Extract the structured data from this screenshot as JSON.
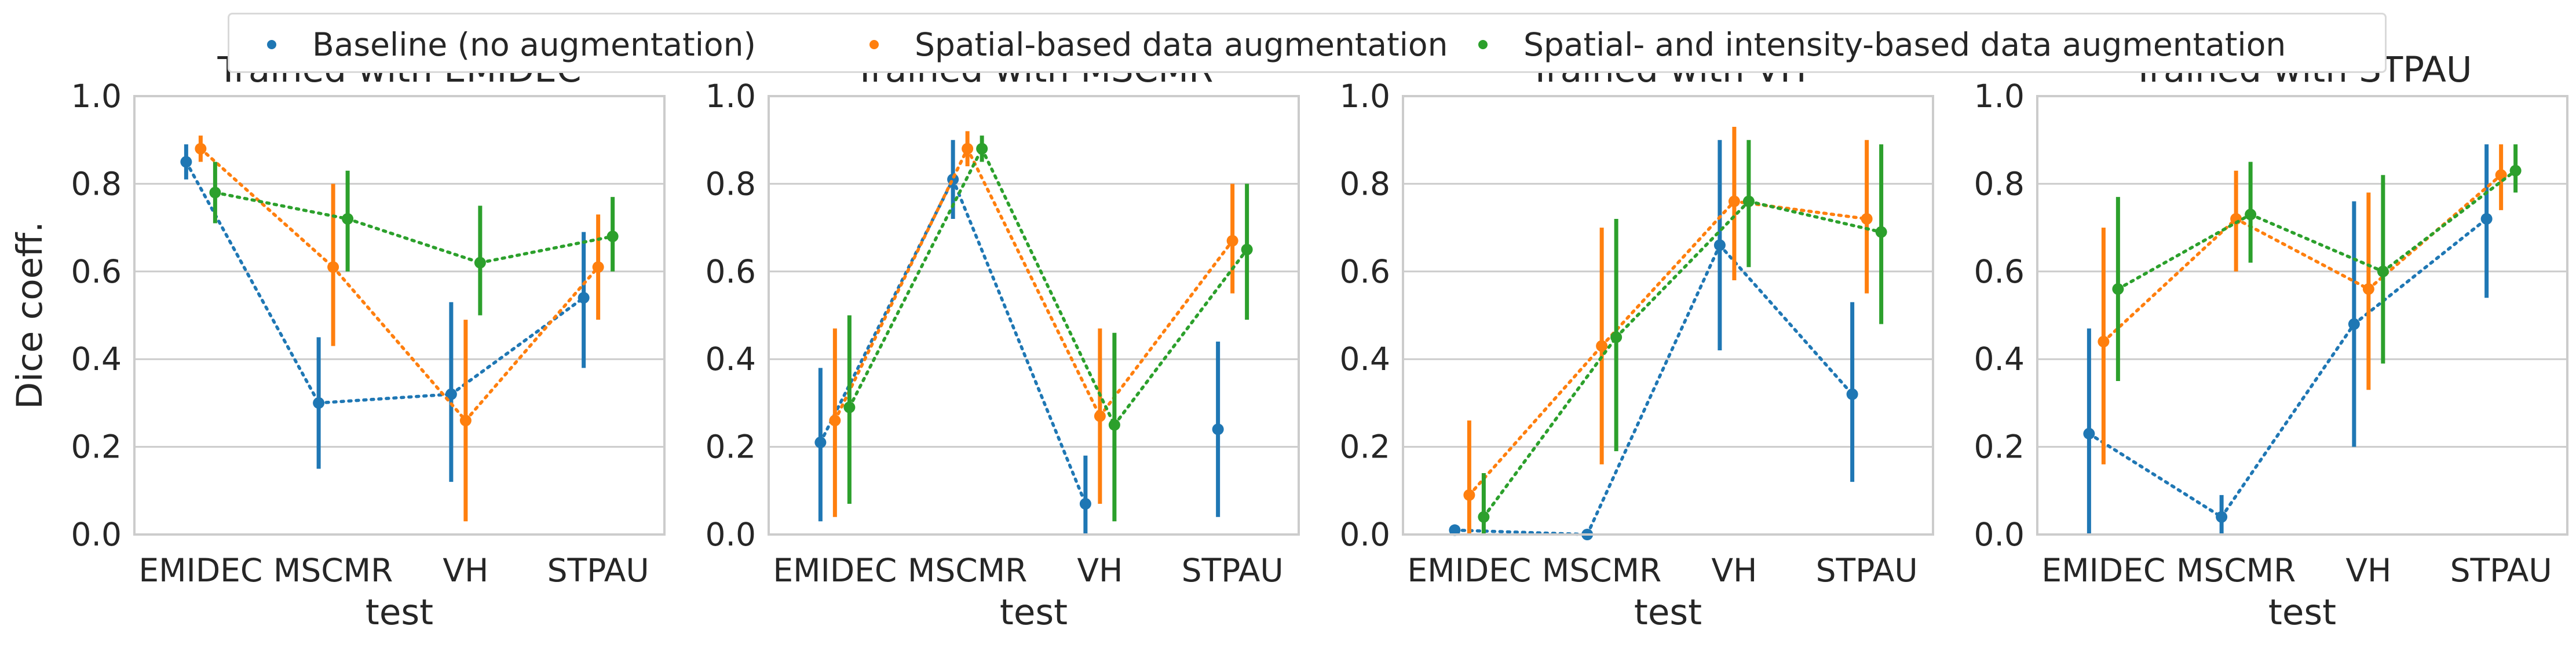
{
  "legend": [
    {
      "label": "Baseline (no augmentation)",
      "color": "#1f77b4"
    },
    {
      "label": "Spatial-based data augmentation",
      "color": "#ff7f0e"
    },
    {
      "label": "Spatial- and intensity-based data augmentation",
      "color": "#2ca02c"
    }
  ],
  "chart_data": [
    {
      "type": "scatter",
      "title": "Trained with EMIDEC",
      "xlabel": "test",
      "ylabel": "Dice coeff.",
      "ylim": [
        0,
        1
      ],
      "yticks": [
        "0.0",
        "0.2",
        "0.4",
        "0.6",
        "0.8",
        "1.0"
      ],
      "categories": [
        "EMIDEC",
        "MSCMR",
        "VH",
        "STPAU"
      ],
      "series": [
        {
          "name": "Baseline (no augmentation)",
          "values": [
            0.85,
            0.3,
            0.32,
            0.54
          ],
          "lower": [
            0.81,
            0.15,
            0.12,
            0.38
          ],
          "upper": [
            0.89,
            0.45,
            0.53,
            0.69
          ]
        },
        {
          "name": "Spatial-based data augmentation",
          "values": [
            0.88,
            0.61,
            0.26,
            0.61
          ],
          "lower": [
            0.85,
            0.43,
            0.03,
            0.49
          ],
          "upper": [
            0.91,
            0.8,
            0.49,
            0.73
          ]
        },
        {
          "name": "Spatial- and intensity-based data augmentation",
          "values": [
            0.78,
            0.72,
            0.62,
            0.68
          ],
          "lower": [
            0.71,
            0.6,
            0.5,
            0.6
          ],
          "upper": [
            0.85,
            0.83,
            0.75,
            0.77
          ]
        }
      ]
    },
    {
      "type": "scatter",
      "title": "Trained with MSCMR",
      "xlabel": "test",
      "ylabel": "",
      "ylim": [
        0,
        1
      ],
      "yticks": [
        "0.0",
        "0.2",
        "0.4",
        "0.6",
        "0.8",
        "1.0"
      ],
      "categories": [
        "EMIDEC",
        "MSCMR",
        "VH",
        "STPAU"
      ],
      "series": [
        {
          "name": "Baseline (no augmentation)",
          "values": [
            0.21,
            0.81,
            0.07,
            null
          ],
          "lower": [
            0.03,
            0.72,
            0.0,
            0.04
          ],
          "upper": [
            0.38,
            0.9,
            0.18,
            0.44
          ],
          "extra_point": {
            "category": "STPAU",
            "value": 0.24
          }
        },
        {
          "name": "Spatial-based data augmentation",
          "values": [
            0.26,
            0.88,
            0.27,
            0.67
          ],
          "lower": [
            0.04,
            0.84,
            0.07,
            0.55
          ],
          "upper": [
            0.47,
            0.92,
            0.47,
            0.8
          ]
        },
        {
          "name": "Spatial- and intensity-based data augmentation",
          "values": [
            0.29,
            0.88,
            0.25,
            0.65
          ],
          "lower": [
            0.07,
            0.85,
            0.03,
            0.49
          ],
          "upper": [
            0.5,
            0.91,
            0.46,
            0.8
          ]
        }
      ]
    },
    {
      "type": "scatter",
      "title": "Trained with VH",
      "xlabel": "test",
      "ylabel": "",
      "ylim": [
        0,
        1
      ],
      "yticks": [
        "0.0",
        "0.2",
        "0.4",
        "0.6",
        "0.8",
        "1.0"
      ],
      "categories": [
        "EMIDEC",
        "MSCMR",
        "VH",
        "STPAU"
      ],
      "series": [
        {
          "name": "Baseline (no augmentation)",
          "values": [
            0.01,
            0.0,
            0.66,
            0.32
          ],
          "lower": [
            0.0,
            0.0,
            0.42,
            0.12
          ],
          "upper": [
            0.02,
            0.01,
            0.9,
            0.53
          ]
        },
        {
          "name": "Spatial-based data augmentation",
          "values": [
            0.09,
            0.43,
            0.76,
            0.72
          ],
          "lower": [
            0.0,
            0.16,
            0.58,
            0.55
          ],
          "upper": [
            0.26,
            0.7,
            0.93,
            0.9
          ]
        },
        {
          "name": "Spatial- and intensity-based data augmentation",
          "values": [
            0.04,
            0.45,
            0.76,
            0.69
          ],
          "lower": [
            0.0,
            0.19,
            0.61,
            0.48
          ],
          "upper": [
            0.14,
            0.72,
            0.9,
            0.89
          ]
        }
      ]
    },
    {
      "type": "scatter",
      "title": "Trained with STPAU",
      "xlabel": "test",
      "ylabel": "",
      "ylim": [
        0,
        1
      ],
      "yticks": [
        "0.0",
        "0.2",
        "0.4",
        "0.6",
        "0.8",
        "1.0"
      ],
      "categories": [
        "EMIDEC",
        "MSCMR",
        "VH",
        "STPAU"
      ],
      "series": [
        {
          "name": "Baseline (no augmentation)",
          "values": [
            0.23,
            0.04,
            0.48,
            0.72
          ],
          "lower": [
            0.0,
            0.0,
            0.2,
            0.54
          ],
          "upper": [
            0.47,
            0.09,
            0.76,
            0.89
          ]
        },
        {
          "name": "Spatial-based data augmentation",
          "values": [
            0.44,
            0.72,
            0.56,
            0.82
          ],
          "lower": [
            0.16,
            0.6,
            0.33,
            0.74
          ],
          "upper": [
            0.7,
            0.83,
            0.78,
            0.89
          ]
        },
        {
          "name": "Spatial- and intensity-based data augmentation",
          "values": [
            0.56,
            0.73,
            0.6,
            0.83
          ],
          "lower": [
            0.35,
            0.62,
            0.39,
            0.78
          ],
          "upper": [
            0.77,
            0.85,
            0.82,
            0.89
          ]
        }
      ]
    }
  ]
}
